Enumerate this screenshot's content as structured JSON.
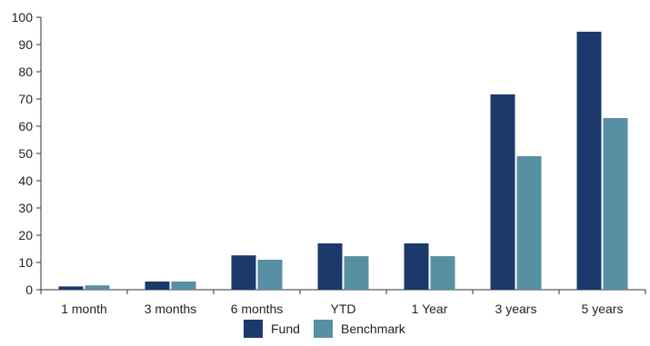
{
  "chart_data": {
    "type": "bar",
    "categories": [
      "1 month",
      "3 months",
      "6 months",
      "YTD",
      "1 Year",
      "3 years",
      "5 years"
    ],
    "series": [
      {
        "name": "Fund",
        "color": "#1b3a6b",
        "values": [
          1.2,
          3.0,
          12.6,
          17.0,
          17.0,
          71.7,
          94.7
        ]
      },
      {
        "name": "Benchmark",
        "color": "#578fa3",
        "values": [
          1.6,
          3.0,
          11.0,
          12.3,
          12.3,
          49.0,
          63.0
        ]
      }
    ],
    "ylim": [
      0,
      100
    ],
    "yticks": [
      0,
      10,
      20,
      30,
      40,
      50,
      60,
      70,
      80,
      90,
      100
    ],
    "title": "",
    "xlabel": "",
    "ylabel": "",
    "grid": false,
    "legend_position": "bottom-center"
  }
}
